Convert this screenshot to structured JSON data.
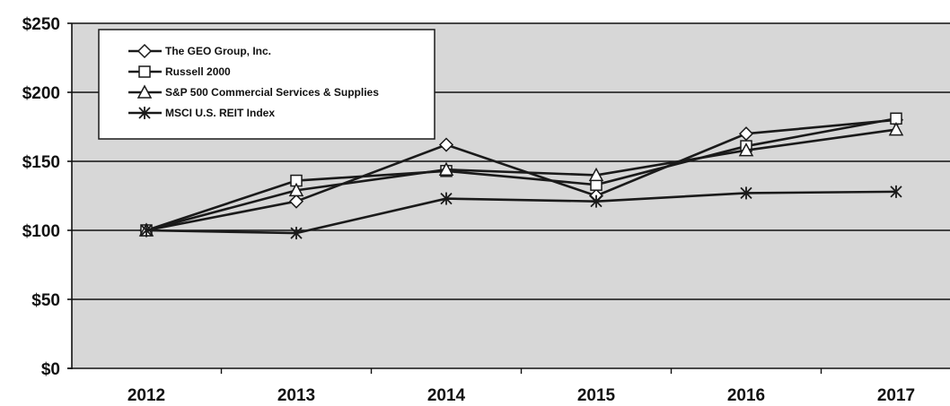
{
  "chart_data": {
    "type": "line",
    "title": "",
    "xlabel": "",
    "ylabel": "",
    "categories": [
      "2012",
      "2013",
      "2014",
      "2015",
      "2016",
      "2017"
    ],
    "ylim": [
      0,
      250
    ],
    "yticks": [
      0,
      50,
      100,
      150,
      200,
      250
    ],
    "ytick_labels": [
      "$0",
      "$50",
      "$100",
      "$150",
      "$200",
      "$250"
    ],
    "grid": true,
    "legend_position": "top-left",
    "series": [
      {
        "name": "The GEO Group, Inc.",
        "marker": "diamond",
        "values": [
          100,
          121,
          162,
          125,
          170,
          180
        ]
      },
      {
        "name": "Russell 2000",
        "marker": "square",
        "values": [
          100,
          136,
          143,
          133,
          161,
          181
        ]
      },
      {
        "name": "S&P 500 Commercial Services & Supplies",
        "marker": "triangle",
        "values": [
          100,
          129,
          144,
          140,
          158,
          173
        ]
      },
      {
        "name": "MSCI U.S. REIT Index",
        "marker": "star",
        "values": [
          100,
          98,
          123,
          121,
          127,
          128
        ]
      }
    ],
    "colors": {
      "plot_bg": "#d7d7d7",
      "line": "#1a1a1a",
      "grid": "#111111"
    }
  }
}
